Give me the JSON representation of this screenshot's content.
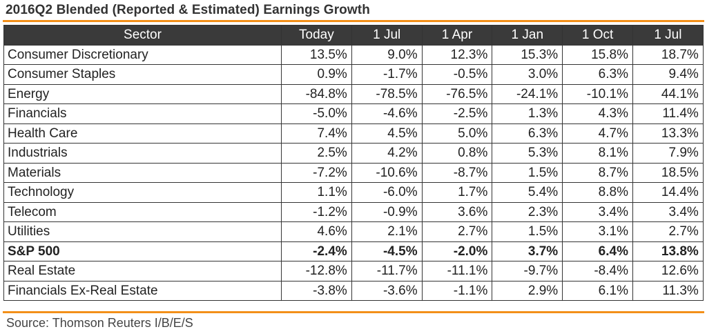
{
  "title": "2016Q2 Blended (Reported & Estimated) Earnings Growth",
  "colors": {
    "accent": "#f39019",
    "header_bg": "#3a3a3a",
    "header_text": "#ffffff",
    "border": "#333333"
  },
  "table": {
    "headers": [
      "Sector",
      "Today",
      "1 Jul",
      "1 Apr",
      "1 Jan",
      "1 Oct",
      "1 Jul"
    ],
    "rows": [
      {
        "sector": "Consumer Discretionary",
        "values": [
          "13.5%",
          "9.0%",
          "12.3%",
          "15.3%",
          "15.8%",
          "18.7%"
        ],
        "bold": false
      },
      {
        "sector": "Consumer Staples",
        "values": [
          "0.9%",
          "-1.7%",
          "-0.5%",
          "3.0%",
          "6.3%",
          "9.4%"
        ],
        "bold": false
      },
      {
        "sector": "Energy",
        "values": [
          "-84.8%",
          "-78.5%",
          "-76.5%",
          "-24.1%",
          "-10.1%",
          "44.1%"
        ],
        "bold": false
      },
      {
        "sector": "Financials",
        "values": [
          "-5.0%",
          "-4.6%",
          "-2.5%",
          "1.3%",
          "4.3%",
          "11.4%"
        ],
        "bold": false
      },
      {
        "sector": "Health Care",
        "values": [
          "7.4%",
          "4.5%",
          "5.0%",
          "6.3%",
          "4.7%",
          "13.3%"
        ],
        "bold": false
      },
      {
        "sector": "Industrials",
        "values": [
          "2.5%",
          "4.2%",
          "0.8%",
          "5.3%",
          "8.1%",
          "7.9%"
        ],
        "bold": false
      },
      {
        "sector": "Materials",
        "values": [
          "-7.2%",
          "-10.6%",
          "-8.7%",
          "1.5%",
          "8.7%",
          "18.5%"
        ],
        "bold": false
      },
      {
        "sector": "Technology",
        "values": [
          "1.1%",
          "-6.0%",
          "1.7%",
          "5.4%",
          "8.8%",
          "14.4%"
        ],
        "bold": false
      },
      {
        "sector": "Telecom",
        "values": [
          "-1.2%",
          "-0.9%",
          "3.6%",
          "2.3%",
          "3.4%",
          "3.4%"
        ],
        "bold": false
      },
      {
        "sector": "Utilities",
        "values": [
          "4.6%",
          "2.1%",
          "2.7%",
          "1.5%",
          "3.1%",
          "2.7%"
        ],
        "bold": false
      },
      {
        "sector": "S&P 500",
        "values": [
          "-2.4%",
          "-4.5%",
          "-2.0%",
          "3.7%",
          "6.4%",
          "13.8%"
        ],
        "bold": true
      },
      {
        "sector": "Real Estate",
        "values": [
          "-12.8%",
          "-11.7%",
          "-11.1%",
          "-9.7%",
          "-8.4%",
          "12.6%"
        ],
        "bold": false
      },
      {
        "sector": "Financials Ex-Real Estate",
        "values": [
          "-3.8%",
          "-3.6%",
          "-1.1%",
          "2.9%",
          "6.1%",
          "11.3%"
        ],
        "bold": false
      }
    ]
  },
  "source": "Source: Thomson Reuters I/B/E/S"
}
